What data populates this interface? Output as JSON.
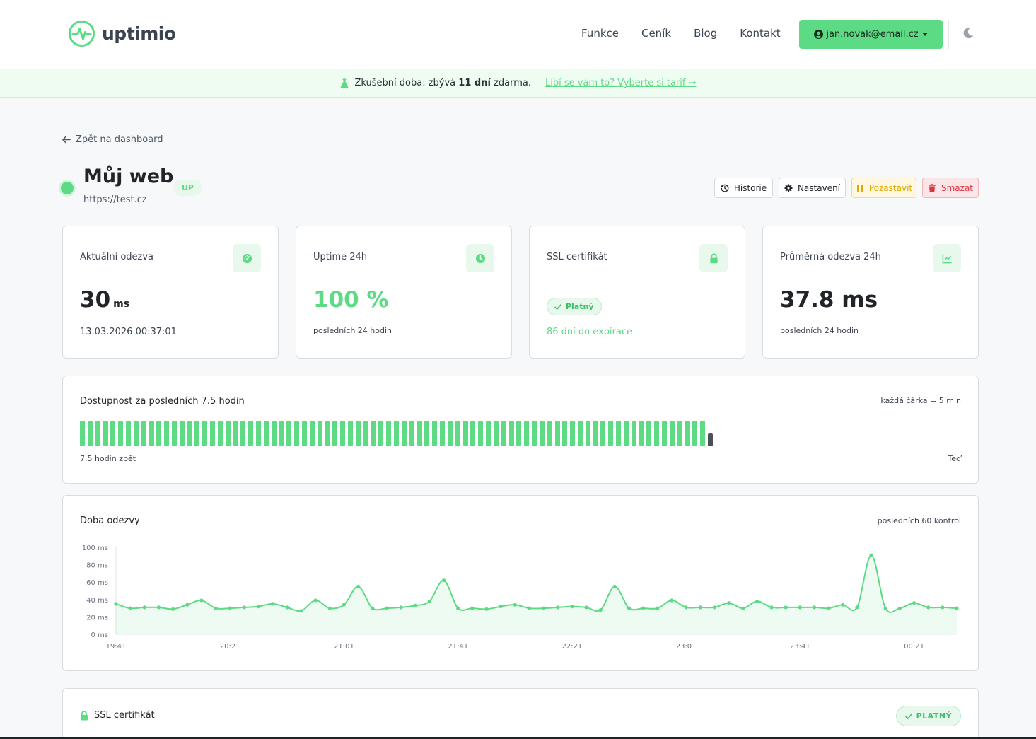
{
  "brand": {
    "name": "uptimio",
    "accent": "#5cdb84"
  },
  "nav": {
    "links": [
      "Funkce",
      "Ceník",
      "Blog",
      "Kontakt"
    ],
    "user_email": "jan.novak@email.cz",
    "theme_icon": "moon-icon"
  },
  "trial": {
    "prefix": "Zkušební doba: zbývá",
    "days": "11 dní",
    "suffix": "zdarma.",
    "link": "Líbí se vám to? Vyberte si tarif →"
  },
  "back_link": "Zpět na dashboard",
  "monitor": {
    "name": "Můj web",
    "status": "UP",
    "url": "https://test.cz",
    "actions": {
      "history": "Historie",
      "settings": "Nastavení",
      "pause": "Pozastavit",
      "delete": "Smazat"
    }
  },
  "stats": {
    "response": {
      "label": "Aktuální odezva",
      "value": "30",
      "unit": "ms",
      "timestamp": "13.03.2026 00:37:01",
      "icon": "gauge-icon"
    },
    "uptime": {
      "label": "Uptime 24h",
      "value": "100 %",
      "sub": "posledních 24 hodin",
      "icon": "clock-icon"
    },
    "ssl": {
      "label": "SSL certifikát",
      "status": "Platný",
      "sub": "86 dní do expirace",
      "icon": "lock-icon"
    },
    "avg": {
      "label": "Průměrná odezva 24h",
      "value": "37.8 ms",
      "sub": "posledních 24 hodin",
      "icon": "line-chart-icon"
    }
  },
  "availability": {
    "title": "Dostupnost za posledních 7.5 hodin",
    "note": "každá čárka = 5 min",
    "left_label": "7.5 hodin zpět",
    "right_label": "Teď",
    "up_count": 82,
    "has_current": true
  },
  "response_chart": {
    "title": "Doba odezvy",
    "note": "posledních 60 kontrol"
  },
  "chart_data": {
    "type": "area",
    "title": "Doba odezvy",
    "ylim": [
      0,
      100
    ],
    "yticks": [
      "0 ms",
      "20 ms",
      "40 ms",
      "60 ms",
      "80 ms",
      "100 ms"
    ],
    "xticks": [
      "19:41",
      "20:21",
      "21:01",
      "21:41",
      "22:21",
      "23:01",
      "23:41",
      "00:21"
    ],
    "series": [
      {
        "values": [
          35,
          30,
          31,
          31,
          29,
          34,
          39,
          30,
          30,
          31,
          32,
          35,
          31,
          27,
          39,
          30,
          34,
          55,
          30,
          30,
          31,
          33,
          38,
          62,
          30,
          30,
          29,
          32,
          34,
          30,
          30,
          31,
          32,
          31,
          28,
          55,
          30,
          30,
          30,
          39,
          31,
          31,
          31,
          36,
          30,
          38,
          31,
          31,
          31,
          31,
          30,
          34,
          31,
          91,
          30,
          30,
          36,
          31,
          31,
          30
        ]
      }
    ],
    "grid": false,
    "color": "#5cdb84"
  },
  "ssl_section": {
    "title": "SSL certifikát",
    "badge": "PLATNÝ"
  }
}
